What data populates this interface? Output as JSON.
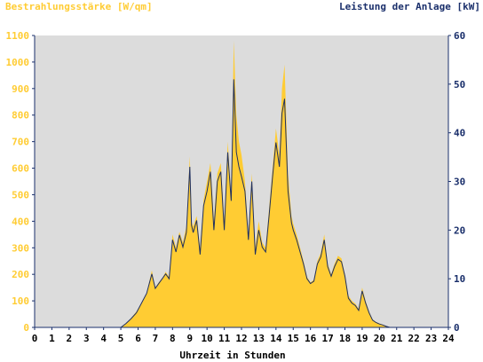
{
  "chart_data": {
    "type": "area",
    "left_axis_title": "Bestrahlungsstärke [W/qm]",
    "right_axis_title": "Leistung der Anlage [kW]",
    "xlabel": "Uhrzeit in Stunden",
    "xlim": [
      0,
      24
    ],
    "ylim_left": [
      0,
      1100
    ],
    "ylim_right": [
      0,
      60
    ],
    "x_ticks": [
      "0",
      "1",
      "2",
      "3",
      "4",
      "5",
      "6",
      "7",
      "8",
      "9",
      "10",
      "11",
      "12",
      "13",
      "14",
      "15",
      "16",
      "17",
      "18",
      "19",
      "20",
      "21",
      "22",
      "23",
      "24"
    ],
    "y_ticks_left": [
      "0",
      "100",
      "200",
      "300",
      "400",
      "500",
      "600",
      "700",
      "800",
      "900",
      "1000",
      "1100"
    ],
    "y_ticks_right": [
      "0",
      "10",
      "20",
      "30",
      "40",
      "50",
      "60"
    ],
    "grid": false,
    "colors": {
      "plot_background": "#dcdcdc",
      "irradiance_fill": "#ffcc33",
      "power_line": "#1f2f5f",
      "left_axis_text": "#ffcc33",
      "right_axis_text": "#1a2f6b",
      "axis_line": "#1a2f6b"
    },
    "series": [
      {
        "axis": "left",
        "style": "filled-area",
        "x": [
          0,
          5.0,
          5.3,
          5.6,
          5.9,
          6.2,
          6.5,
          6.8,
          7.0,
          7.2,
          7.4,
          7.6,
          7.8,
          8.0,
          8.2,
          8.4,
          8.6,
          8.8,
          9.0,
          9.1,
          9.2,
          9.4,
          9.6,
          9.8,
          10.0,
          10.2,
          10.4,
          10.6,
          10.8,
          11.0,
          11.2,
          11.4,
          11.55,
          11.7,
          11.85,
          12.0,
          12.2,
          12.4,
          12.6,
          12.8,
          13.0,
          13.2,
          13.4,
          13.6,
          13.8,
          14.0,
          14.2,
          14.35,
          14.5,
          14.7,
          14.9,
          15.0,
          15.2,
          15.4,
          15.6,
          15.8,
          16.0,
          16.2,
          16.4,
          16.6,
          16.8,
          17.0,
          17.2,
          17.4,
          17.6,
          17.8,
          18.0,
          18.2,
          18.4,
          18.6,
          18.8,
          19.0,
          19.2,
          19.4,
          19.6,
          19.8,
          20.0,
          20.2,
          20.4,
          20.6,
          24
        ],
        "y": [
          0,
          0,
          15,
          35,
          60,
          90,
          130,
          215,
          150,
          170,
          185,
          210,
          190,
          350,
          300,
          360,
          320,
          380,
          645,
          400,
          380,
          420,
          300,
          480,
          550,
          620,
          400,
          580,
          620,
          400,
          700,
          500,
          1080,
          800,
          700,
          650,
          550,
          350,
          580,
          300,
          400,
          320,
          300,
          450,
          600,
          750,
          650,
          900,
          990,
          580,
          420,
          390,
          350,
          300,
          250,
          190,
          170,
          180,
          250,
          280,
          350,
          240,
          200,
          240,
          270,
          260,
          200,
          120,
          100,
          90,
          70,
          150,
          100,
          60,
          30,
          20,
          15,
          10,
          5,
          0,
          0
        ]
      },
      {
        "axis": "right",
        "style": "line",
        "x": [
          0,
          5.0,
          5.3,
          5.6,
          5.9,
          6.2,
          6.5,
          6.8,
          7.0,
          7.2,
          7.4,
          7.6,
          7.8,
          8.0,
          8.2,
          8.4,
          8.6,
          8.8,
          9.0,
          9.1,
          9.2,
          9.4,
          9.6,
          9.8,
          10.0,
          10.2,
          10.4,
          10.6,
          10.8,
          11.0,
          11.2,
          11.4,
          11.55,
          11.7,
          11.85,
          12.0,
          12.2,
          12.4,
          12.6,
          12.8,
          13.0,
          13.2,
          13.4,
          13.6,
          13.8,
          14.0,
          14.2,
          14.35,
          14.5,
          14.7,
          14.9,
          15.0,
          15.2,
          15.4,
          15.6,
          15.8,
          16.0,
          16.2,
          16.4,
          16.6,
          16.8,
          17.0,
          17.2,
          17.4,
          17.6,
          17.8,
          18.0,
          18.2,
          18.4,
          18.6,
          18.8,
          19.0,
          19.2,
          19.4,
          19.6,
          19.8,
          20.0,
          20.2,
          20.4,
          20.6,
          24
        ],
        "y": [
          0,
          0,
          0.8,
          1.8,
          3,
          5,
          7,
          11,
          8,
          9,
          10,
          11,
          10,
          18,
          15.5,
          19,
          16.5,
          19.5,
          33,
          21,
          19.5,
          22,
          15,
          25,
          28,
          32,
          20,
          30,
          32,
          20,
          36,
          26,
          51,
          36,
          33,
          31,
          28,
          18,
          30,
          15,
          20,
          16.5,
          15.5,
          23,
          31,
          38,
          33,
          44,
          47,
          28,
          21.5,
          20,
          18,
          15.5,
          13,
          10,
          9,
          9.5,
          13,
          14.5,
          18,
          12.5,
          10.5,
          12.5,
          14,
          13.5,
          10.5,
          6,
          5,
          4.5,
          3.5,
          7.5,
          5,
          3,
          1.5,
          1,
          0.7,
          0.5,
          0.2,
          0,
          0
        ]
      }
    ]
  }
}
